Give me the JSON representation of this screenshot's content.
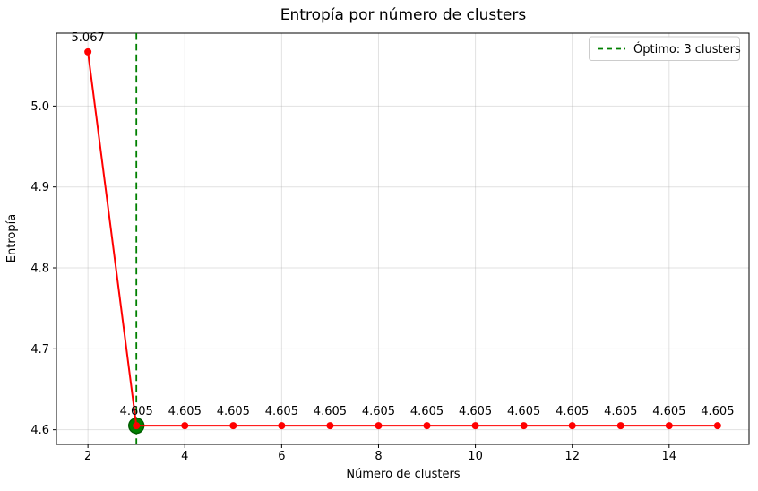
{
  "chart_data": {
    "type": "line",
    "title": "Entropía por número de clusters",
    "xlabel": "Número de clusters",
    "ylabel": "Entropía",
    "x": [
      2,
      3,
      4,
      5,
      6,
      7,
      8,
      9,
      10,
      11,
      12,
      13,
      14,
      15
    ],
    "y": [
      5.067,
      4.605,
      4.605,
      4.605,
      4.605,
      4.605,
      4.605,
      4.605,
      4.605,
      4.605,
      4.605,
      4.605,
      4.605,
      4.605
    ],
    "point_labels": [
      "5.067",
      "4.605",
      "4.605",
      "4.605",
      "4.605",
      "4.605",
      "4.605",
      "4.605",
      "4.605",
      "4.605",
      "4.605",
      "4.605",
      "4.605",
      "4.605"
    ],
    "xlim": [
      1.35,
      15.65
    ],
    "ylim": [
      4.5819,
      5.0901
    ],
    "xtick_values": [
      2,
      4,
      6,
      8,
      10,
      12,
      14
    ],
    "xtick_labels": [
      "2",
      "4",
      "6",
      "8",
      "10",
      "12",
      "14"
    ],
    "ytick_values": [
      4.6,
      4.7,
      4.8,
      4.9,
      5.0
    ],
    "ytick_labels": [
      "4.6",
      "4.7",
      "4.8",
      "4.9",
      "5.0"
    ],
    "grid": true,
    "series_color": "#ff0000",
    "optimal": {
      "x": 3,
      "y": 4.605,
      "line_color": "#008000",
      "marker_color": "#008000",
      "marker_edge_color": "#005a00"
    },
    "legend": {
      "position": "top-right",
      "entries": [
        {
          "label": "Óptimo: 3 clusters",
          "style": "dashed",
          "color": "#008000"
        }
      ]
    }
  }
}
